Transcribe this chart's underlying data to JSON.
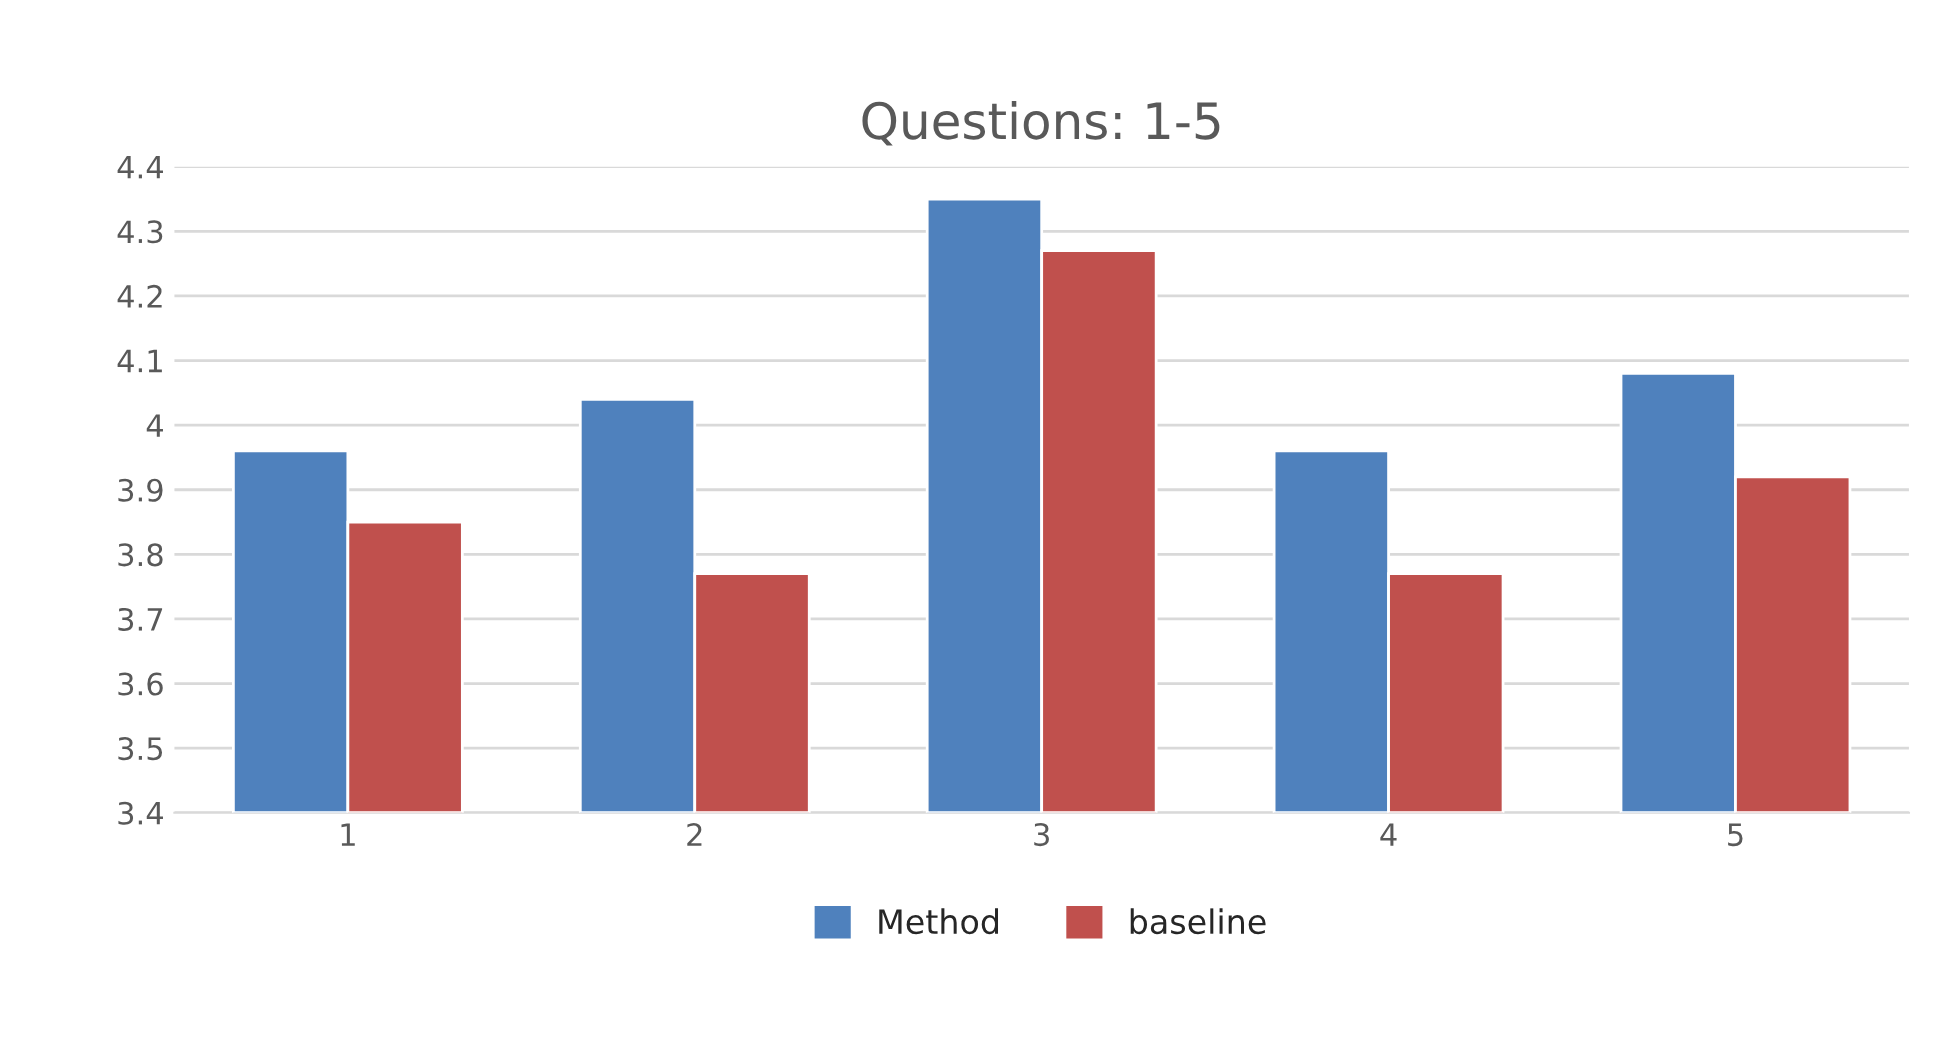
{
  "chart_data": {
    "type": "bar",
    "title": "Questions: 1-5",
    "categories": [
      "1",
      "2",
      "3",
      "4",
      "5"
    ],
    "series": [
      {
        "name": "Method",
        "color": "#4f81bd",
        "values": [
          3.96,
          4.04,
          4.35,
          3.96,
          4.08
        ]
      },
      {
        "name": "baseline",
        "color": "#c0504d",
        "values": [
          3.85,
          3.77,
          4.27,
          3.77,
          3.92
        ]
      }
    ],
    "ylim": [
      3.4,
      4.4
    ],
    "yticks": [
      {
        "value": 3.4,
        "label": "3.4"
      },
      {
        "value": 3.5,
        "label": "3.5"
      },
      {
        "value": 3.6,
        "label": "3.6"
      },
      {
        "value": 3.7,
        "label": "3.7"
      },
      {
        "value": 3.8,
        "label": "3.8"
      },
      {
        "value": 3.9,
        "label": "3.9"
      },
      {
        "value": 4,
        "label": "4"
      },
      {
        "value": 4.1,
        "label": "4.1"
      },
      {
        "value": 4.2,
        "label": "4.2"
      },
      {
        "value": 4.3,
        "label": "4.3"
      },
      {
        "value": 4.4,
        "label": "4.4"
      }
    ],
    "grid": "y",
    "legend": "bottom"
  }
}
